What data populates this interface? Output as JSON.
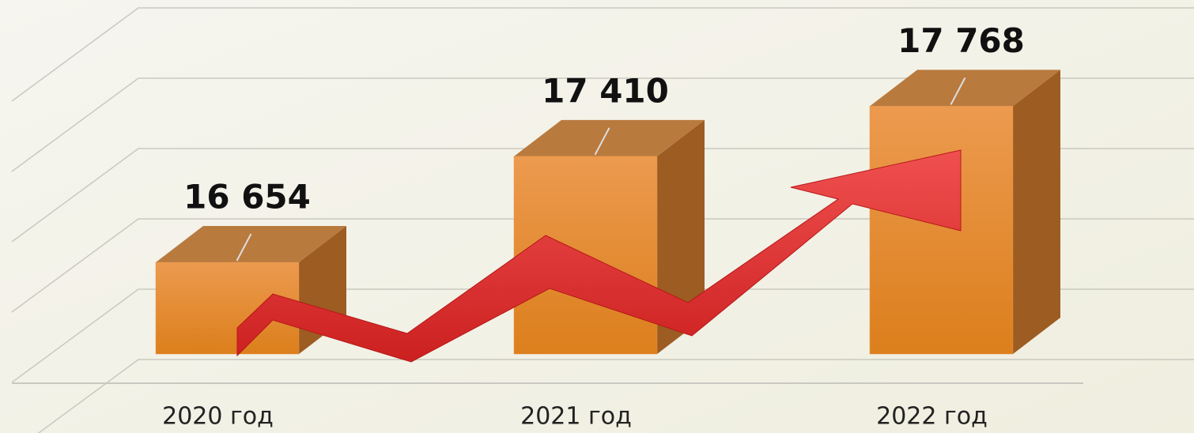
{
  "chart_data": {
    "type": "bar3d",
    "categories": [
      "2020 год",
      "2021 год",
      "2022 год"
    ],
    "values": [
      16654,
      17410,
      17768
    ],
    "value_labels": [
      "16 654",
      "17 410",
      "17 768"
    ],
    "color": "#e8954a",
    "ylim": [
      16000,
      18500
    ],
    "yticks": [
      16000,
      16500,
      17000,
      17500,
      18000,
      18500
    ],
    "grid": true
  }
}
